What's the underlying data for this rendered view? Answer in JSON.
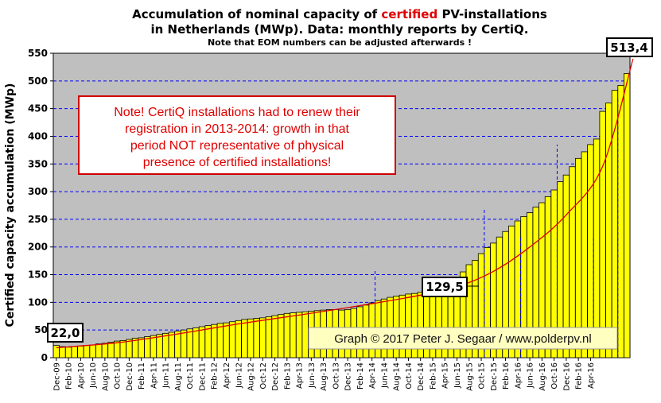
{
  "title": {
    "line1_pre": "Accumulation  of nominal  capacity of ",
    "line1_highlight": "certified",
    "line1_post": " PV-installations",
    "line2": "in  Netherlands (MWp). Data: monthly  reports by CertiQ.",
    "line3": "Note that EOM numbers can be adjusted afterwards  !"
  },
  "colors": {
    "plot_bg": "#bfbfbf",
    "bar_fill": "#ffff00",
    "bar_stroke": "#000000",
    "trend": "#e00000",
    "guide": "#0000ff",
    "highlight": "#e00000"
  },
  "annotation": {
    "lines": [
      "Note! CertiQ installations had to renew their",
      "registration in 2013-2014:  growth in that",
      "period NOT representative of physical",
      "presence of certified installations!"
    ]
  },
  "credit": "Graph © 2017 Peter J. Segaar / www.polderpv.nl",
  "callouts": {
    "first": "22,0",
    "middle": "129,5",
    "last": "513,4"
  },
  "chart_data": {
    "type": "bar",
    "ylabel": "Certified  capacity accumulation  (MWp)",
    "ylim": [
      0,
      550
    ],
    "yticks": [
      0,
      50,
      100,
      150,
      200,
      250,
      300,
      350,
      400,
      450,
      500,
      550
    ],
    "grid": "horizontal-dashed",
    "x_tick_labels": [
      "Dec-09",
      "Feb-10",
      "Apr-10",
      "Jun-10",
      "Aug-10",
      "Oct-10",
      "Dec-10",
      "Feb-11",
      "Apr-11",
      "Jun-11",
      "Aug-11",
      "Oct-11",
      "Dec-11",
      "Feb-12",
      "Apr-12",
      "Jun-12",
      "Aug-12",
      "Oct-12",
      "Dec-12",
      "Feb-13",
      "Apr-13",
      "Jun-13",
      "Aug-13",
      "Oct-13",
      "Dec-13",
      "Feb-14",
      "Apr-14",
      "Jun-14",
      "Aug-14",
      "Oct-14",
      "Dec-14",
      "Feb-15",
      "Apr-15",
      "Jun-15",
      "Aug-15",
      "Oct-15",
      "Dec-15",
      "Feb-16",
      "Apr-16",
      "Jun-16",
      "Aug-16",
      "Oct-16",
      "Dec-16",
      "Feb-16",
      "Apr-16"
    ],
    "values": [
      22,
      20,
      19,
      20,
      21,
      22,
      23,
      25,
      26,
      28,
      30,
      31,
      33,
      35,
      36,
      38,
      40,
      42,
      44,
      46,
      48,
      50,
      52,
      54,
      56,
      58,
      60,
      62,
      63,
      65,
      67,
      69,
      70,
      71,
      72,
      74,
      76,
      78,
      80,
      81,
      82,
      83,
      84,
      85,
      86,
      87,
      87,
      86,
      87,
      89,
      92,
      95,
      99,
      103,
      106,
      109,
      111,
      113,
      115,
      116,
      118,
      120,
      121,
      123,
      126,
      129.5,
      140,
      155,
      168,
      176,
      188,
      199,
      207,
      218,
      228,
      238,
      247,
      255,
      262,
      272,
      280,
      291,
      303,
      318,
      330,
      345,
      360,
      372,
      385,
      395,
      445,
      460,
      483,
      492,
      513.4
    ],
    "trend": [
      [
        0,
        18
      ],
      [
        10,
        27
      ],
      [
        20,
        43
      ],
      [
        30,
        61
      ],
      [
        40,
        77
      ],
      [
        50,
        94
      ],
      [
        60,
        113
      ],
      [
        66,
        128
      ],
      [
        72,
        156
      ],
      [
        78,
        200
      ],
      [
        84,
        258
      ],
      [
        90,
        346
      ],
      [
        95,
        540
      ]
    ],
    "guides": [
      {
        "bar": 53,
        "top": 158
      },
      {
        "bar": 71,
        "top": 268
      },
      {
        "bar": 77,
        "top": 218
      },
      {
        "bar": 83,
        "top": 385
      },
      {
        "bar": 89,
        "top": 222
      },
      {
        "bar": 93,
        "top": 467
      }
    ]
  }
}
